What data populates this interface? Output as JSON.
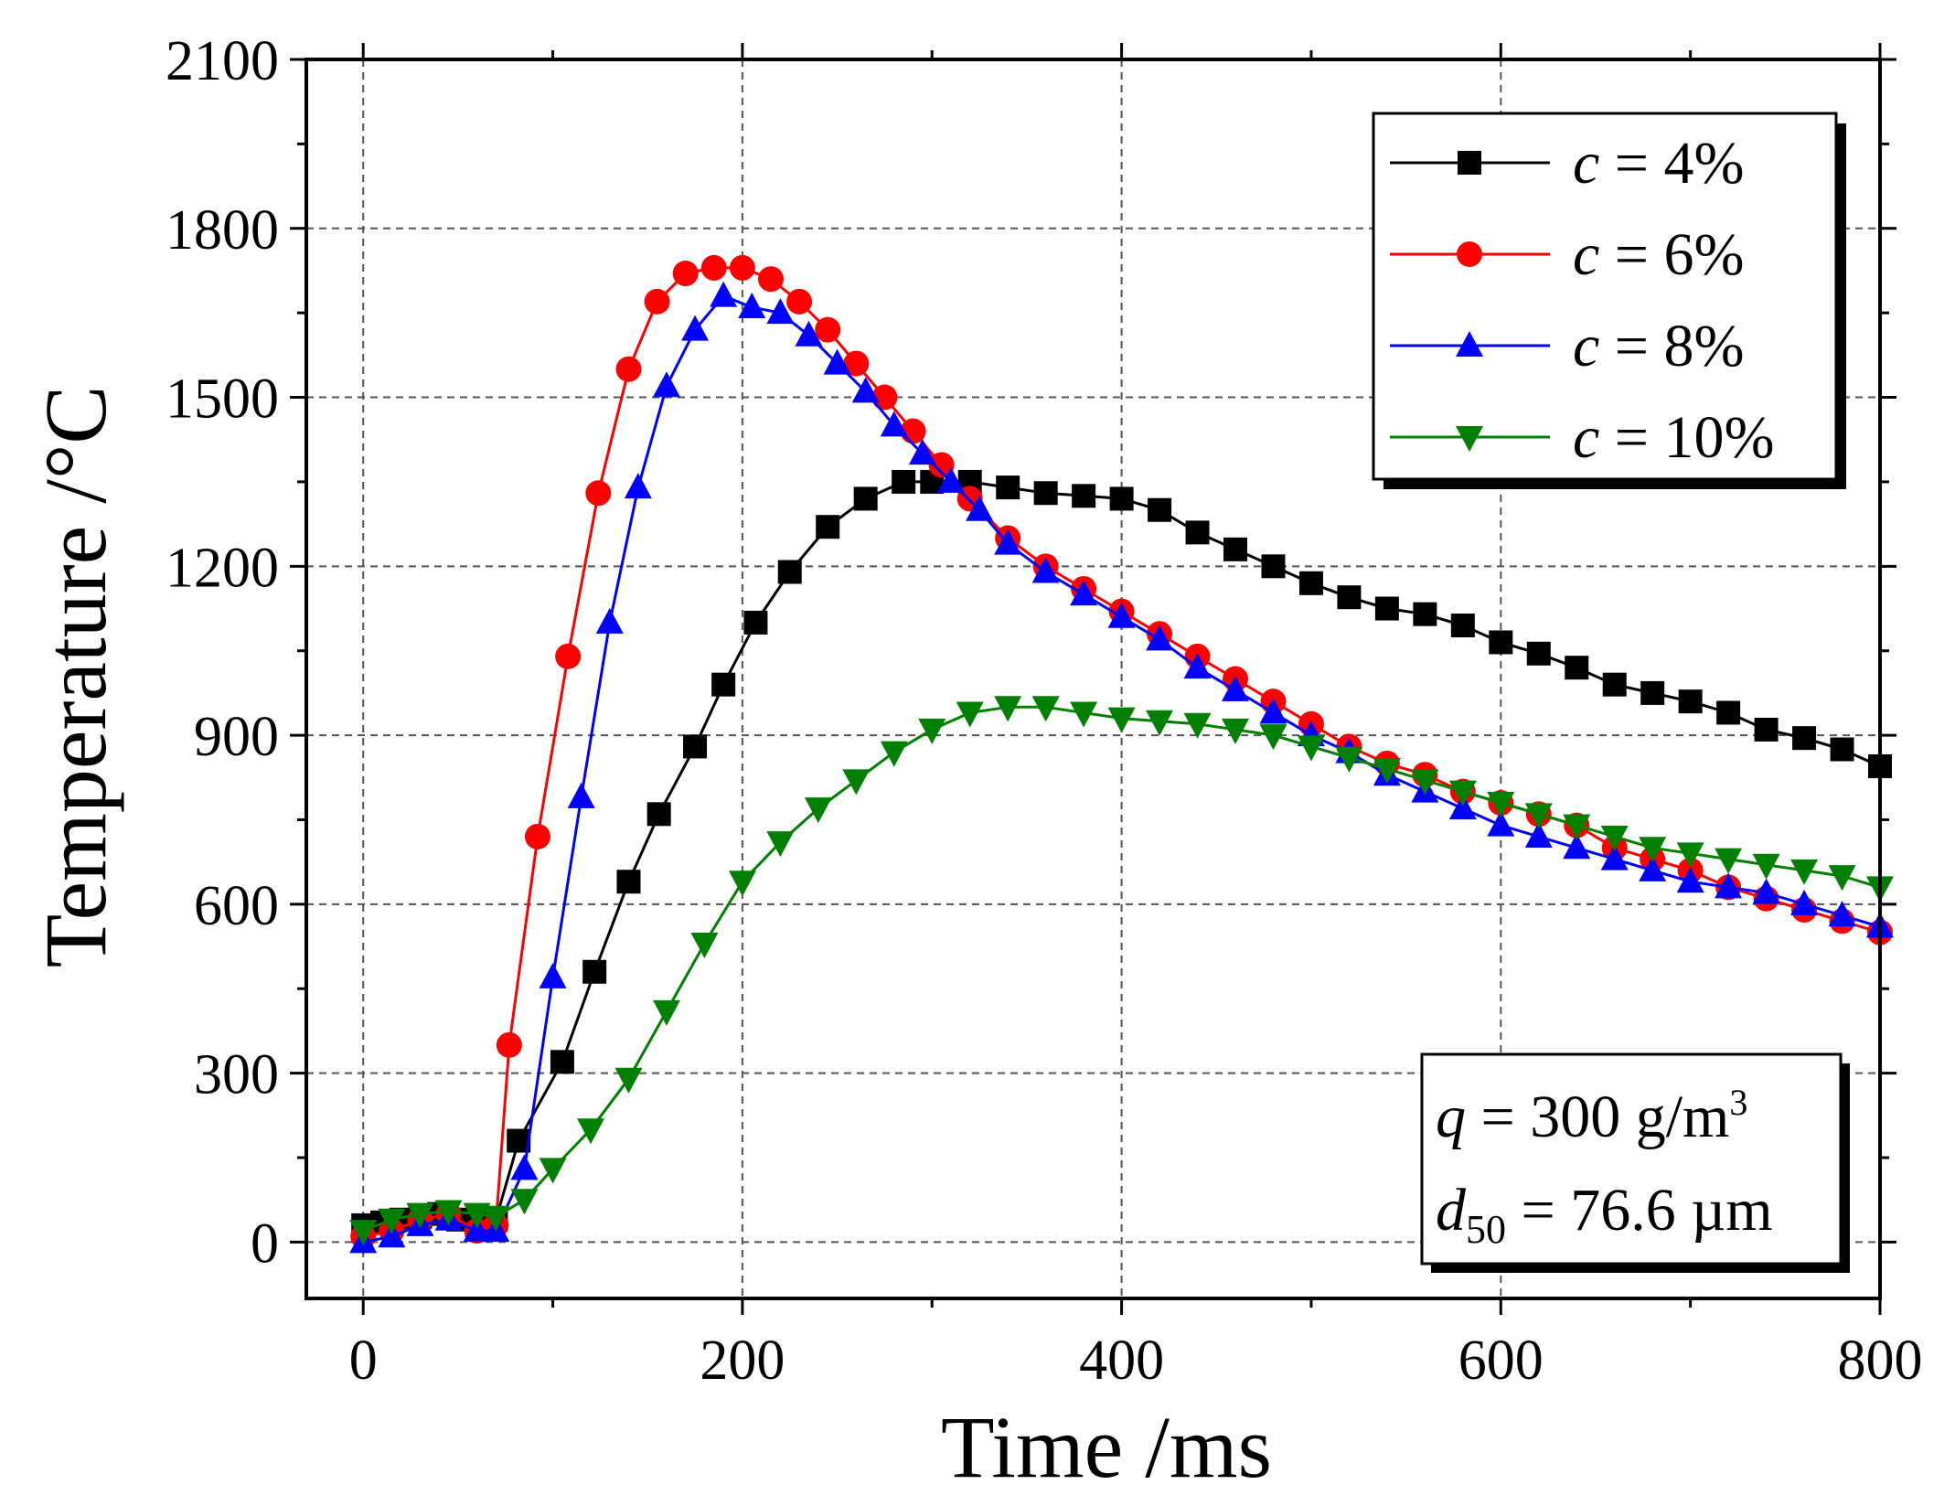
{
  "chart_data": {
    "type": "line",
    "xlabel": "Time /ms",
    "ylabel": "Temperature /°C",
    "xlim": [
      -30,
      800
    ],
    "ylim": [
      -100,
      2100
    ],
    "x_ticks": [
      0,
      200,
      400,
      600,
      800
    ],
    "y_ticks": [
      0,
      300,
      600,
      900,
      1200,
      1500,
      1800,
      2100
    ],
    "x_tick_labels": [
      "0",
      "200",
      "400",
      "600",
      "800"
    ],
    "y_tick_labels": [
      "0",
      "300",
      "600",
      "900",
      "1200",
      "1500",
      "1800",
      "2100"
    ],
    "grid": true,
    "legend_position": "top-right",
    "series": [
      {
        "name": "c = 4%",
        "var": "c",
        "eq": " = 4%",
        "color": "#000000",
        "marker": "square",
        "x": [
          0,
          10,
          20,
          30,
          40,
          50,
          60,
          70,
          82,
          105,
          122,
          140,
          156,
          175,
          190,
          207,
          225,
          245,
          265,
          285,
          300,
          320,
          340,
          360,
          380,
          400,
          420,
          440,
          460,
          480,
          500,
          520,
          540,
          560,
          580,
          600,
          620,
          640,
          660,
          680,
          700,
          720,
          740,
          760,
          780,
          800
        ],
        "y": [
          30,
          35,
          40,
          45,
          50,
          40,
          30,
          40,
          180,
          320,
          480,
          640,
          760,
          880,
          990,
          1100,
          1190,
          1270,
          1320,
          1350,
          1350,
          1350,
          1340,
          1330,
          1325,
          1320,
          1300,
          1260,
          1230,
          1200,
          1170,
          1145,
          1125,
          1115,
          1095,
          1065,
          1045,
          1020,
          990,
          975,
          960,
          940,
          910,
          895,
          875,
          845
        ]
      },
      {
        "name": "c = 6%",
        "var": "c",
        "eq": " = 6%",
        "color": "#ff0000",
        "marker": "circle",
        "x": [
          0,
          15,
          30,
          45,
          60,
          70,
          77,
          92,
          108,
          124,
          140,
          155,
          170,
          185,
          200,
          215,
          230,
          245,
          260,
          275,
          290,
          305,
          320,
          340,
          360,
          380,
          400,
          420,
          440,
          460,
          480,
          500,
          520,
          540,
          560,
          580,
          600,
          620,
          640,
          660,
          680,
          700,
          720,
          740,
          760,
          780,
          800
        ],
        "y": [
          10,
          20,
          40,
          50,
          20,
          30,
          350,
          720,
          1040,
          1330,
          1550,
          1670,
          1720,
          1730,
          1730,
          1710,
          1670,
          1620,
          1560,
          1500,
          1440,
          1380,
          1320,
          1250,
          1200,
          1160,
          1120,
          1080,
          1040,
          1000,
          960,
          920,
          880,
          850,
          830,
          800,
          780,
          760,
          740,
          700,
          680,
          660,
          630,
          610,
          590,
          570,
          550
        ]
      },
      {
        "name": "c = 8%",
        "var": "c",
        "eq": " = 8%",
        "color": "#0000ff",
        "marker": "triangle-up",
        "x": [
          0,
          15,
          30,
          45,
          60,
          70,
          85,
          100,
          115,
          130,
          145,
          160,
          175,
          190,
          205,
          220,
          235,
          250,
          265,
          280,
          295,
          310,
          325,
          340,
          360,
          380,
          400,
          420,
          440,
          460,
          480,
          500,
          520,
          540,
          560,
          580,
          600,
          620,
          640,
          660,
          680,
          700,
          720,
          740,
          760,
          780,
          800
        ],
        "y": [
          0,
          10,
          30,
          40,
          20,
          20,
          130,
          470,
          790,
          1100,
          1340,
          1520,
          1620,
          1680,
          1660,
          1650,
          1610,
          1560,
          1510,
          1450,
          1400,
          1350,
          1300,
          1240,
          1190,
          1150,
          1110,
          1070,
          1020,
          980,
          940,
          900,
          870,
          830,
          800,
          770,
          740,
          720,
          700,
          680,
          660,
          640,
          630,
          620,
          600,
          580,
          560
        ]
      },
      {
        "name": "c = 10%",
        "var": "c",
        "eq": " = 10%",
        "color": "#008000",
        "marker": "triangle-down",
        "x": [
          0,
          15,
          30,
          45,
          60,
          70,
          85,
          100,
          120,
          140,
          160,
          180,
          200,
          220,
          240,
          260,
          280,
          300,
          320,
          340,
          360,
          380,
          400,
          420,
          440,
          460,
          480,
          500,
          520,
          540,
          560,
          580,
          600,
          620,
          640,
          660,
          680,
          700,
          720,
          740,
          760,
          780,
          800
        ],
        "y": [
          20,
          40,
          50,
          55,
          50,
          45,
          75,
          130,
          200,
          290,
          410,
          530,
          640,
          710,
          770,
          820,
          870,
          910,
          940,
          950,
          950,
          940,
          930,
          925,
          920,
          910,
          900,
          880,
          860,
          840,
          820,
          800,
          780,
          760,
          740,
          720,
          700,
          690,
          680,
          670,
          660,
          650,
          630
        ]
      }
    ],
    "annotation": {
      "q_var": "q",
      "q_text": " = 300 g/m",
      "q_sup": "3",
      "d_var": "d",
      "d_sub": "50",
      "d_text": " = 76.6 µm"
    }
  }
}
